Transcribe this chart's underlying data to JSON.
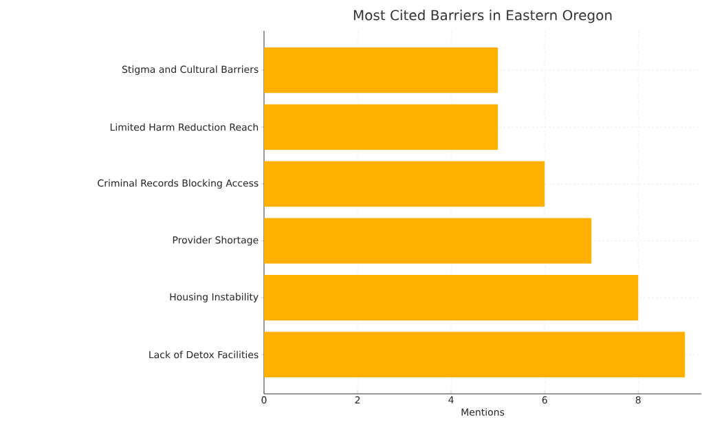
{
  "chart_data": {
    "type": "bar",
    "orientation": "horizontal",
    "title": "Most Cited Barriers in Eastern Oregon",
    "xlabel": "Mentions",
    "categories": [
      "Stigma and Cultural Barriers",
      "Limited Harm Reduction Reach",
      "Criminal Records Blocking Access",
      "Provider Shortage",
      "Housing Instability",
      "Lack of Detox Facilities"
    ],
    "values": [
      5,
      5,
      6,
      7,
      8,
      9
    ],
    "color": "#ffb000",
    "xlim": [
      0,
      9.35
    ],
    "xticks": [
      0,
      2,
      4,
      6,
      8
    ],
    "grid": true
  }
}
